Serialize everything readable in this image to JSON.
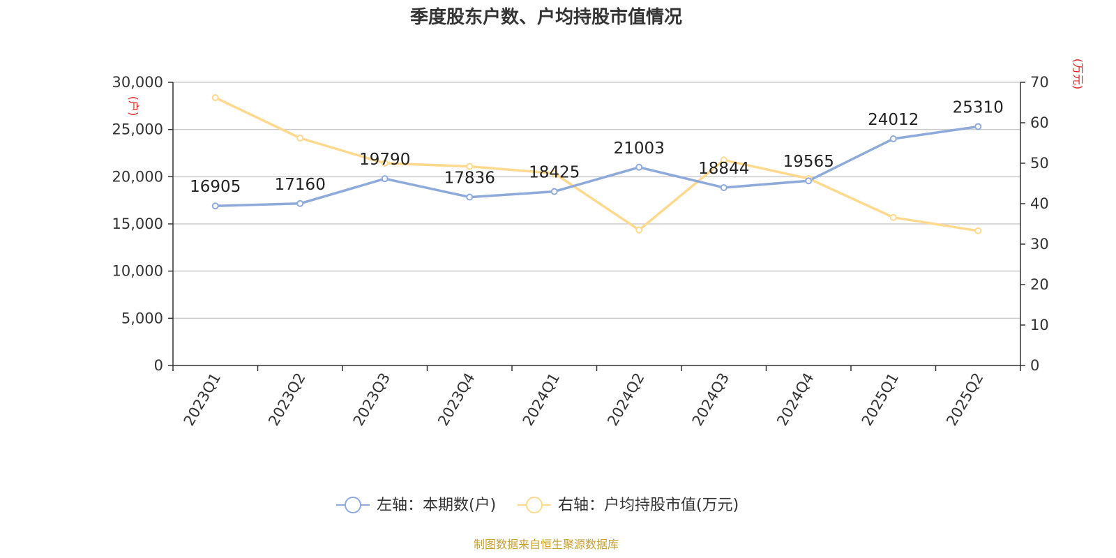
{
  "chart_data": {
    "type": "line",
    "title": "季度股东户数、户均持股市值情况",
    "categories": [
      "2023Q1",
      "2023Q2",
      "2023Q3",
      "2023Q4",
      "2024Q1",
      "2024Q2",
      "2024Q3",
      "2024Q4",
      "2025Q1",
      "2025Q2"
    ],
    "left_axis": {
      "unit": "(户)",
      "ylim": [
        0,
        30000
      ],
      "ticks": [
        "0",
        "5,000",
        "10,000",
        "15,000",
        "20,000",
        "25,000",
        "30,000"
      ]
    },
    "right_axis": {
      "unit": "(万元)",
      "ylim": [
        0,
        70
      ],
      "ticks": [
        "0",
        "10",
        "20",
        "30",
        "40",
        "50",
        "60",
        "70"
      ]
    },
    "series": [
      {
        "name": "左轴：本期数(户)",
        "axis": "left",
        "color": "#8eaadb",
        "values": [
          16905,
          17160,
          19790,
          17836,
          18425,
          21003,
          18844,
          19565,
          24012,
          25310
        ],
        "labels": [
          "16905",
          "17160",
          "19790",
          "17836",
          "18425",
          "21003",
          "18844",
          "19565",
          "24012",
          "25310"
        ]
      },
      {
        "name": "右轴：户均持股市值(万元)",
        "axis": "right",
        "color": "#ffd98e",
        "values": [
          66.2,
          56.2,
          50.0,
          49.2,
          47.5,
          33.5,
          50.8,
          46.2,
          36.6,
          33.3
        ]
      }
    ],
    "grid": true,
    "legend_position": "bottom-center",
    "unit_color": "#e02020"
  },
  "footer": {
    "source": "制图数据来自恒生聚源数据库",
    "color": "#c8a030"
  }
}
